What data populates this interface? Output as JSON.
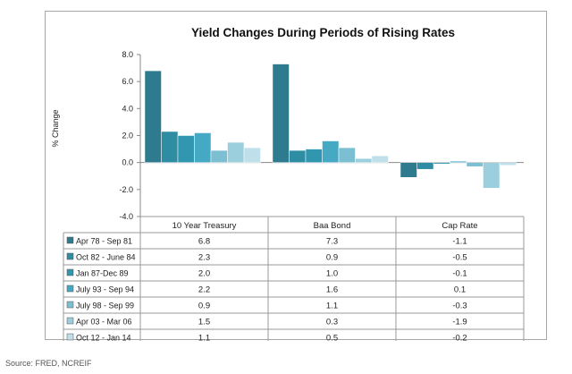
{
  "chart_data": {
    "type": "bar",
    "title": "Yield Changes During Periods of Rising Rates",
    "ylabel": "% Change",
    "xlabel": "",
    "ylim": [
      -4.0,
      8.0
    ],
    "yticks": [
      "8.0",
      "6.0",
      "4.0",
      "2.0",
      "0.0",
      "-2.0",
      "-4.0"
    ],
    "categories": [
      "10 Year Treasury",
      "Baa Bond",
      "Cap Rate"
    ],
    "series": [
      {
        "name": "Apr 78 - Sep 81",
        "values": [
          6.8,
          7.3,
          -1.1
        ],
        "labels": [
          "6.8",
          "7.3",
          "-1.1"
        ],
        "color": "#2e7b8f"
      },
      {
        "name": "Oct 82 - June 84",
        "values": [
          2.3,
          0.9,
          -0.5
        ],
        "labels": [
          "2.3",
          "0.9",
          "-0.5"
        ],
        "color": "#2f8da3"
      },
      {
        "name": "Jan 87-Dec 89",
        "values": [
          2.0,
          1.0,
          -0.1
        ],
        "labels": [
          "2.0",
          "1.0",
          "-0.1"
        ],
        "color": "#3196b0"
      },
      {
        "name": "July 93 - Sep 94",
        "values": [
          2.2,
          1.6,
          0.1
        ],
        "labels": [
          "2.2",
          "1.6",
          "0.1"
        ],
        "color": "#45a9c4"
      },
      {
        "name": "July 98 - Sep 99",
        "values": [
          0.9,
          1.1,
          -0.3
        ],
        "labels": [
          "0.9",
          "1.1",
          "-0.3"
        ],
        "color": "#7dbfd2"
      },
      {
        "name": "Apr 03 - Mar 06",
        "values": [
          1.5,
          0.3,
          -1.9
        ],
        "labels": [
          "1.5",
          "0.3",
          "-1.9"
        ],
        "color": "#9ccfdd"
      },
      {
        "name": "Oct 12 - Jan 14",
        "values": [
          1.1,
          0.5,
          -0.2
        ],
        "labels": [
          "1.1",
          "0.5",
          "-0.2"
        ],
        "color": "#bfe0ea"
      }
    ],
    "grid": false,
    "legend": "data-table"
  },
  "source_note": "Source: FRED, NCREIF"
}
